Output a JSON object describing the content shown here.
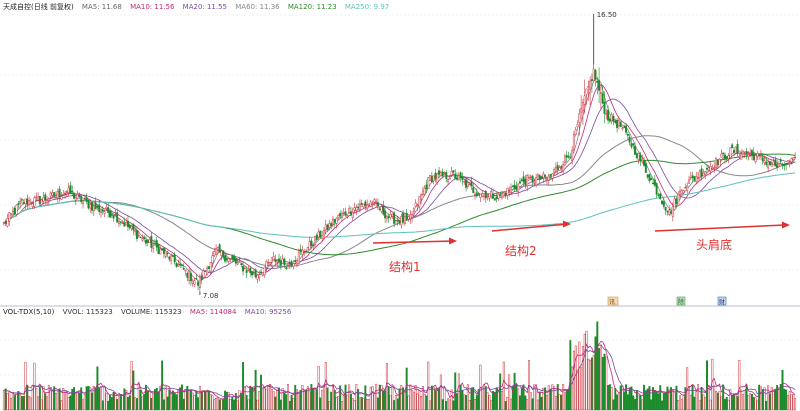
{
  "main_legend": {
    "stock": "天成自控(日线 前复权)",
    "ma5": "MA5: 11.68",
    "ma10": "MA10: 11.56",
    "ma20": "MA20: 11.55",
    "ma60": "MA60: 11.36",
    "ma120": "MA120: 11.23",
    "ma250": "MA250: 9.97"
  },
  "vol_legend": {
    "indicator": "VOL-TDX(5,10)",
    "vvol": "VVOL: 115323",
    "volume": "VOLUME: 115323",
    "ma5": "MA5: 114084",
    "ma10": "MA10: 95256"
  },
  "colors": {
    "up": "#c8323c",
    "down": "#1a8a2a",
    "ma5": "#888888",
    "ma10": "#c02a7a",
    "ma20": "#7a4aa0",
    "ma60": "#888888",
    "ma120": "#2f8a2f",
    "ma250": "#5fc0c0",
    "annot": "#e03030",
    "grid": "#dde3ea"
  },
  "chart_data": {
    "type": "candlestick",
    "title": "天成自控(日线 前复权)",
    "price_range": [
      6.6,
      17.2
    ],
    "volume_max": 320000,
    "annotations": {
      "high_label": "16.50",
      "low_label": "7.08",
      "structure1": "结构1",
      "structure2": "结构2",
      "head_shoulders": "头肩底"
    },
    "event_markers": [
      "讯",
      "除",
      "财"
    ],
    "anchors": [
      [
        0,
        9.4
      ],
      [
        10,
        10.2
      ],
      [
        22,
        10.3
      ],
      [
        35,
        10.6
      ],
      [
        50,
        10.0
      ],
      [
        60,
        9.8
      ],
      [
        78,
        8.8
      ],
      [
        90,
        8.3
      ],
      [
        100,
        7.7
      ],
      [
        108,
        7.2
      ],
      [
        118,
        8.4
      ],
      [
        128,
        8.0
      ],
      [
        140,
        7.5
      ],
      [
        150,
        8.1
      ],
      [
        158,
        7.9
      ],
      [
        170,
        8.6
      ],
      [
        185,
        9.6
      ],
      [
        195,
        10.0
      ],
      [
        205,
        10.2
      ],
      [
        215,
        9.6
      ],
      [
        225,
        9.5
      ],
      [
        237,
        11.1
      ],
      [
        250,
        11.2
      ],
      [
        262,
        10.6
      ],
      [
        275,
        10.4
      ],
      [
        290,
        11.0
      ],
      [
        303,
        11.1
      ],
      [
        315,
        12.0
      ],
      [
        322,
        13.8
      ],
      [
        328,
        15.0
      ],
      [
        335,
        13.4
      ],
      [
        343,
        13.0
      ],
      [
        352,
        12.0
      ],
      [
        360,
        11.0
      ],
      [
        370,
        9.8
      ],
      [
        378,
        10.8
      ],
      [
        392,
        11.5
      ],
      [
        405,
        12.1
      ],
      [
        418,
        11.9
      ],
      [
        430,
        11.5
      ],
      [
        440,
        11.7
      ]
    ],
    "ma_periods": [
      5,
      10,
      20,
      60,
      120,
      250
    ]
  }
}
